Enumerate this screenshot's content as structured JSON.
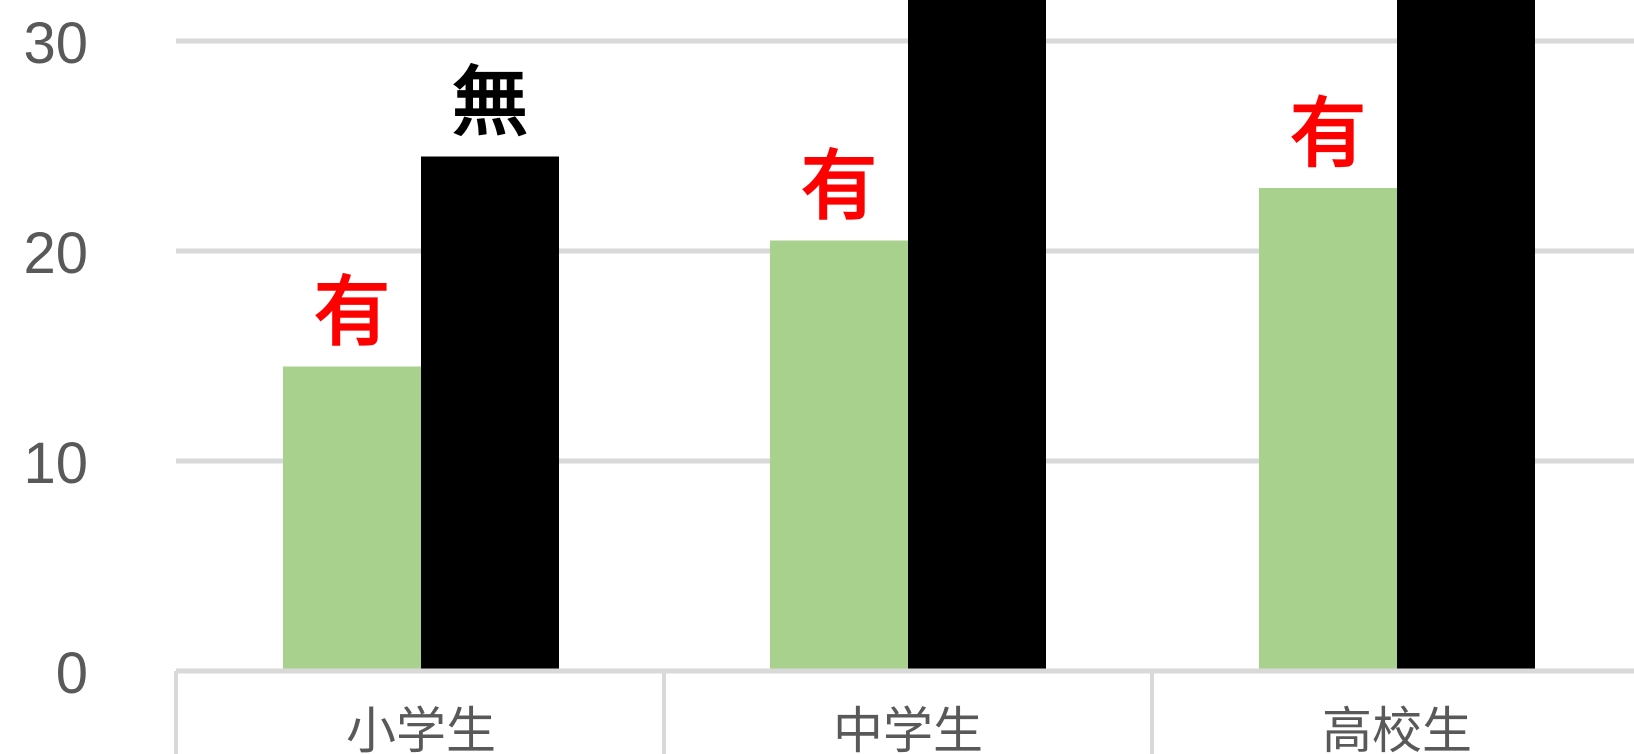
{
  "chart_data": {
    "type": "bar",
    "categories": [
      "小学生",
      "中学生",
      "高校生"
    ],
    "series": [
      {
        "values": [
          14.5,
          20.5,
          23
        ],
        "color": "#a9d18e"
      },
      {
        "values": [
          24.5,
          33,
          33
        ],
        "color": "#000000"
      }
    ],
    "ylim": [
      0,
      30
    ],
    "yticks": [
      "0",
      "10",
      "20",
      "30"
    ],
    "grid": true,
    "annotations": [
      {
        "text": "有",
        "category": "小学生",
        "series_index": 0,
        "color": "#ff0000"
      },
      {
        "text": "無",
        "category": "小学生",
        "series_index": 1,
        "color": "#000000"
      },
      {
        "text": "有",
        "category": "中学生",
        "series_index": 0,
        "color": "#ff0000"
      },
      {
        "text": "有",
        "category": "高校生",
        "series_index": 0,
        "color": "#ff0000"
      }
    ]
  }
}
